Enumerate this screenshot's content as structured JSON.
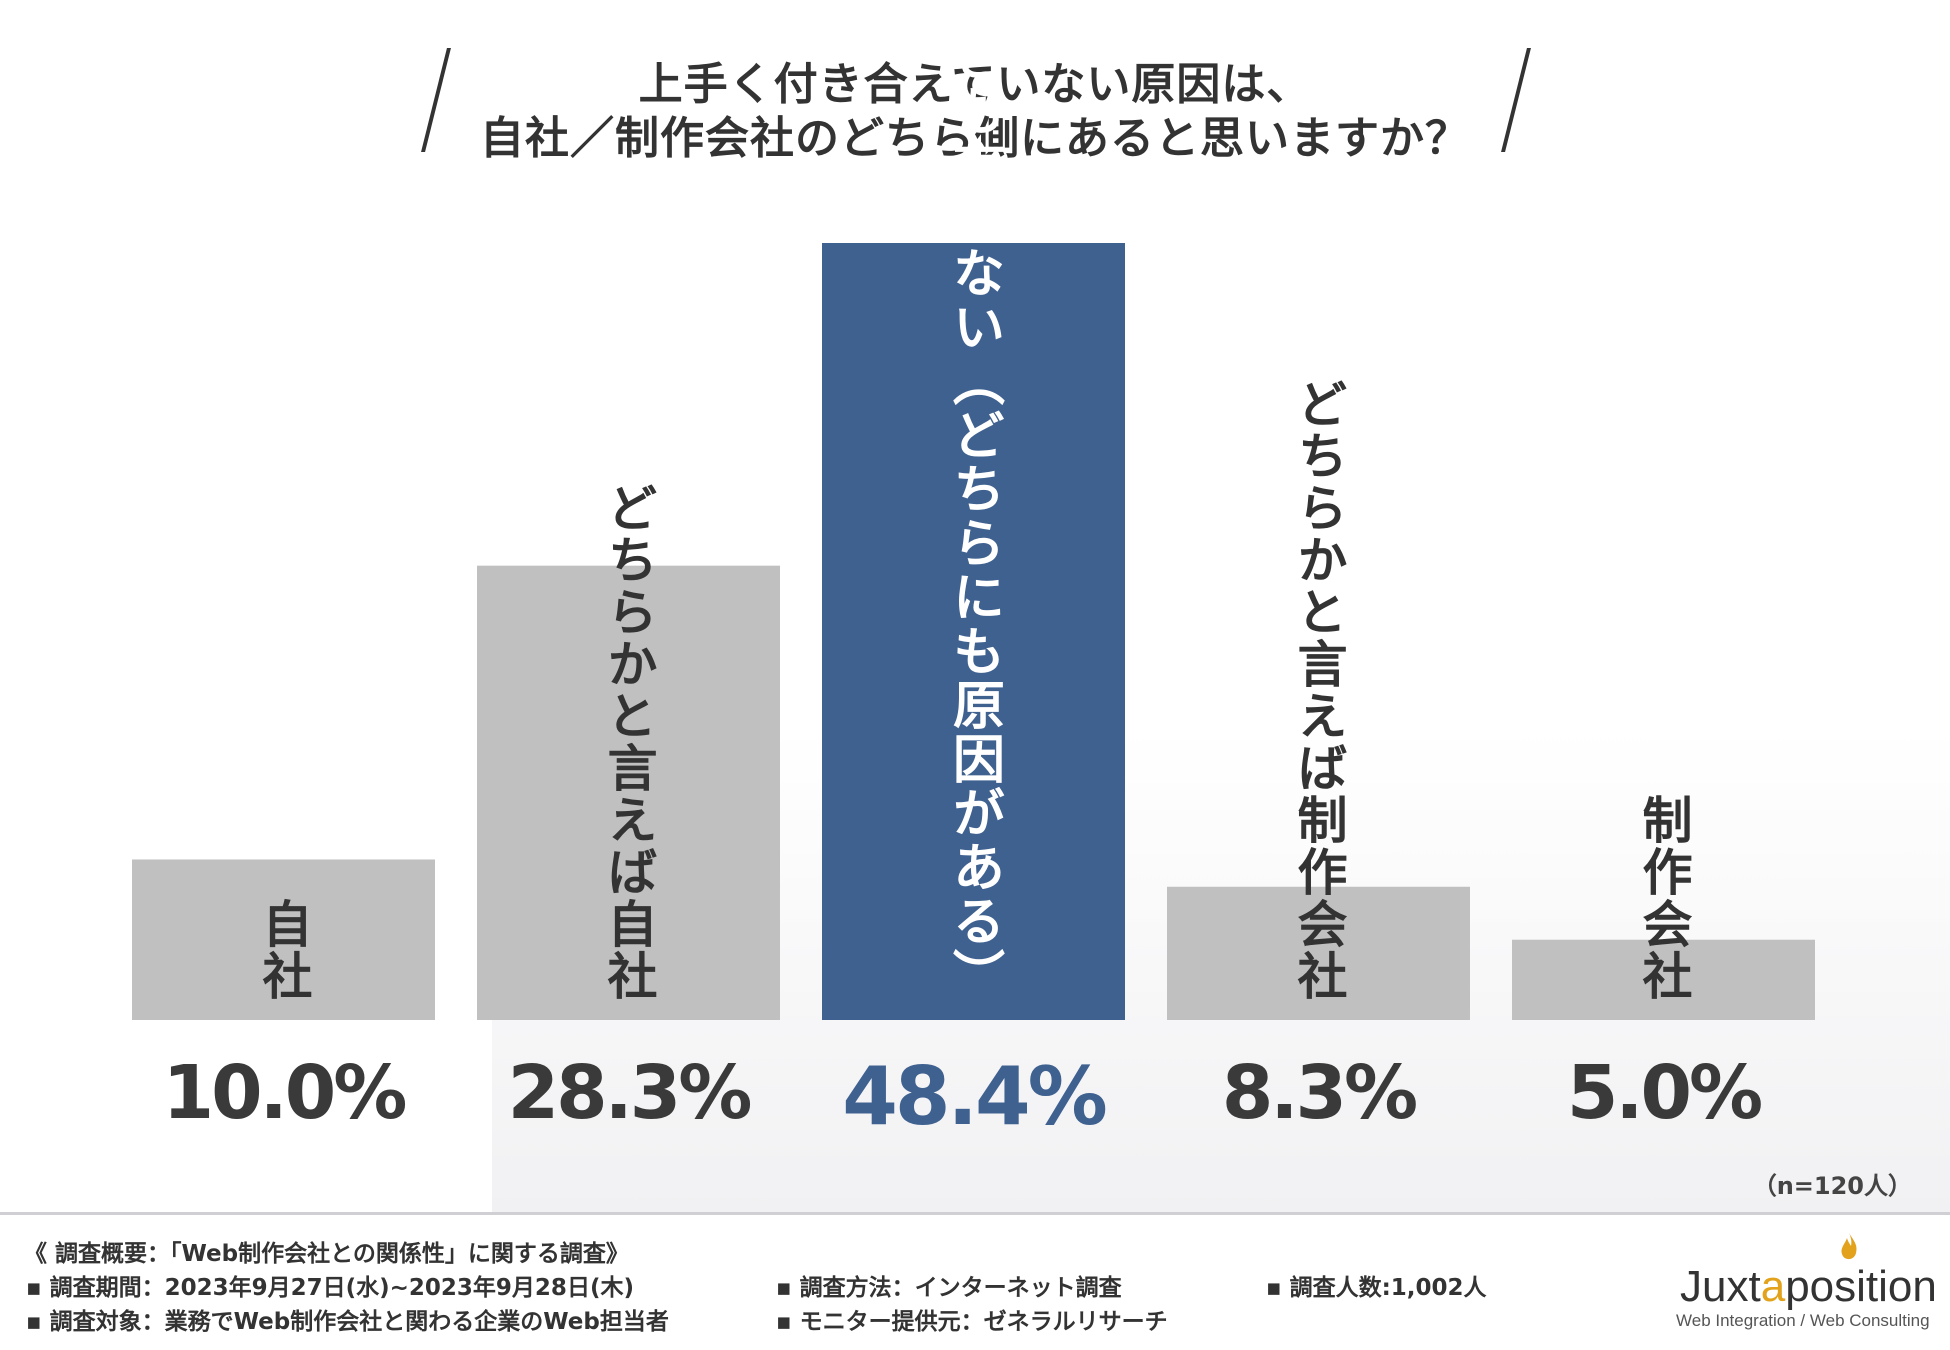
{
  "title": {
    "line1": "上手く付き合えていない原因は、",
    "line2": "自社／制作会社のどちら側にあると思いますか？"
  },
  "colors": {
    "bar": "#c0c0c0",
    "highlight": "#3f6190"
  },
  "chart_data": {
    "type": "bar",
    "categories": [
      "自社",
      "どちらかと言えば自社",
      "どちらとも言えない（どちらにも原因がある）",
      "どちらかと言えば制作会社",
      "制作会社"
    ],
    "values": [
      10.0,
      28.3,
      48.4,
      8.3,
      5.0
    ],
    "value_labels": [
      "10.0%",
      "28.3%",
      "48.4%",
      "8.3%",
      "5.0%"
    ],
    "unit": "%",
    "highlight_index": 2,
    "ylim": [
      0,
      50
    ],
    "grid": false,
    "legend": "none",
    "title": "上手く付き合えていない原因は、自社／制作会社のどちら側にあると思いますか？"
  },
  "sample_size": "（n=120人）",
  "footer": {
    "heading": "《 調査概要：「Web制作会社との関係性」に関する調査》",
    "period": "▪ 調査期間：2023年9月27日(水)~2023年9月28日(木)",
    "target": "▪ 調査対象：業務でWeb制作会社と関わる企業のWeb担当者",
    "method": "▪ 調査方法：インターネット調査",
    "provider": "▪ モニター提供元：ゼネラルリサーチ",
    "count": "▪ 調査人数:1,002人"
  },
  "logo": {
    "name_part1": "Juxt",
    "name_accent": "a",
    "name_part2": "position",
    "subtitle": "Web Integration / Web Consulting",
    "flame_icon": "flame-icon"
  }
}
